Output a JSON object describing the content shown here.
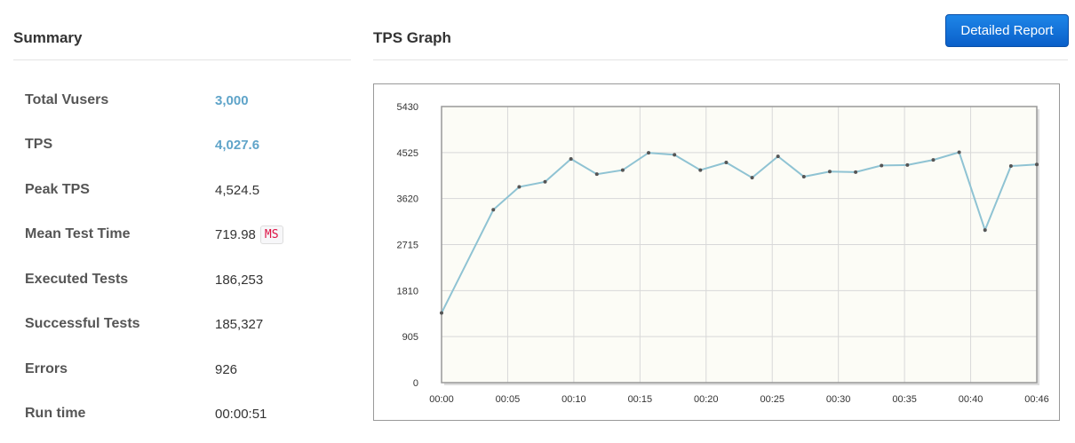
{
  "summary": {
    "title": "Summary",
    "rows": [
      {
        "label": "Total Vusers",
        "value": "3,000"
      },
      {
        "label": "TPS",
        "value": "4,027.6"
      },
      {
        "label": "Peak TPS",
        "value": "4,524.5"
      },
      {
        "label": "Mean Test Time",
        "value": "719.98",
        "unit": "MS"
      },
      {
        "label": "Executed Tests",
        "value": "186,253"
      },
      {
        "label": "Successful Tests",
        "value": "185,327"
      },
      {
        "label": "Errors",
        "value": "926"
      },
      {
        "label": "Run time",
        "value": "00:00:51"
      }
    ]
  },
  "graph": {
    "title": "TPS Graph",
    "report_button": "Detailed Report"
  },
  "colors": {
    "link": "#5fa4c9",
    "button": "#0a6fd8",
    "line": "#8fc3d3",
    "plot_bg": "#fcfcf6"
  },
  "chart_data": {
    "type": "line",
    "title": "",
    "xlabel": "",
    "ylabel": "",
    "x_ticks": [
      "00:00",
      "00:05",
      "00:10",
      "00:15",
      "00:20",
      "00:25",
      "00:30",
      "00:35",
      "00:40",
      "00:46"
    ],
    "y_ticks": [
      "0",
      "905",
      "1810",
      "2715",
      "3620",
      "4525",
      "5430"
    ],
    "xlim": [
      0,
      46
    ],
    "ylim": [
      0,
      5430
    ],
    "grid": true,
    "series": [
      {
        "x": [
          0,
          4,
          6,
          8,
          10,
          12,
          14,
          16,
          18,
          20,
          22,
          24,
          26,
          28,
          30,
          32,
          34,
          36,
          38,
          40,
          42,
          44,
          46
        ],
        "values": [
          1370,
          3400,
          3850,
          3950,
          4400,
          4100,
          4180,
          4520,
          4480,
          4180,
          4330,
          4030,
          4450,
          4050,
          4150,
          4140,
          4270,
          4280,
          4380,
          4530,
          3000,
          4260,
          4290
        ]
      }
    ]
  }
}
